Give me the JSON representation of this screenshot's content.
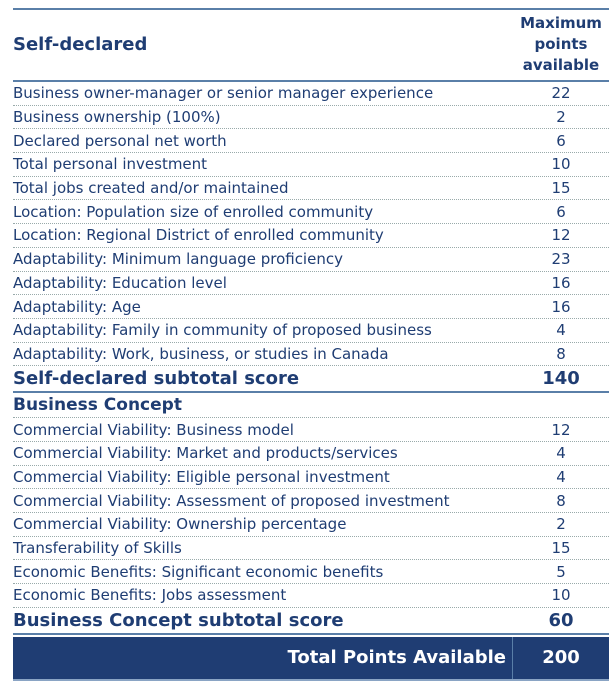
{
  "header": {
    "title": "Self-declared",
    "column": "Maximum points available"
  },
  "self_declared": [
    {
      "label": "Business owner-manager or senior manager experience",
      "points": "22"
    },
    {
      "label": "Business ownership (100%)",
      "points": "2"
    },
    {
      "label": "Declared personal net worth",
      "points": "6"
    },
    {
      "label": "Total personal investment",
      "points": "10"
    },
    {
      "label": "Total jobs created and/or maintained",
      "points": "15"
    },
    {
      "label": "Location: Population size of enrolled community",
      "points": "6"
    },
    {
      "label": "Location: Regional District of enrolled community",
      "points": "12"
    },
    {
      "label": "Adaptability: Minimum language proficiency",
      "points": "23"
    },
    {
      "label": "Adaptability: Education level",
      "points": "16"
    },
    {
      "label": "Adaptability: Age",
      "points": "16"
    },
    {
      "label": "Adaptability: Family in community of proposed business",
      "points": "4"
    },
    {
      "label": "Adaptability: Work, business, or studies in Canada",
      "points": "8"
    }
  ],
  "self_subtotal": {
    "label": "Self-declared subtotal score",
    "points": "140"
  },
  "business_concept_title": "Business Concept",
  "business_concept": [
    {
      "label": "Commercial Viability: Business model",
      "points": "12"
    },
    {
      "label": "Commercial Viability: Market and products/services",
      "points": "4"
    },
    {
      "label": "Commercial Viability: Eligible personal investment",
      "points": "4"
    },
    {
      "label": "Commercial Viability: Assessment of proposed investment",
      "points": "8"
    },
    {
      "label": "Commercial Viability: Ownership percentage",
      "points": "2"
    },
    {
      "label": "Transferability of Skills",
      "points": "15"
    },
    {
      "label": "Economic Benefits: Significant economic benefits",
      "points": "5"
    },
    {
      "label": "Economic Benefits: Jobs assessment",
      "points": "10"
    }
  ],
  "bc_subtotal": {
    "label": "Business Concept subtotal score",
    "points": "60"
  },
  "total": {
    "label": "Total Points Available",
    "points": "200"
  }
}
